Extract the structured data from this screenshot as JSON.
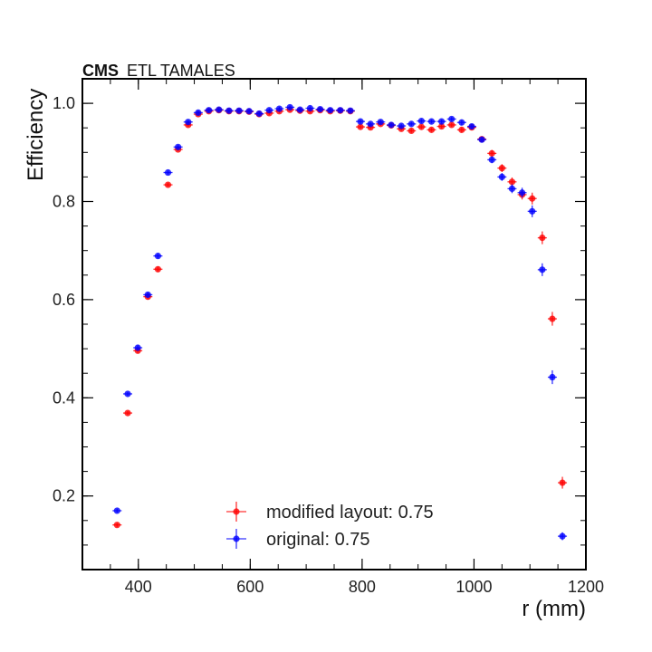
{
  "chart_data": {
    "type": "scatter",
    "label": {
      "experiment": "CMS",
      "subtitle": "ETL TAMALES"
    },
    "title": "",
    "xlabel": "r (mm)",
    "ylabel": "Efficiency",
    "xlim": [
      300,
      1200
    ],
    "ylim": [
      0.05,
      1.05
    ],
    "xticks": [
      400,
      600,
      800,
      1000,
      1200
    ],
    "yticks": [
      0.2,
      0.4,
      0.6,
      0.8,
      1.0
    ],
    "ytick_labels": [
      "0.2",
      "0.4",
      "0.6",
      "0.8",
      "1.0"
    ],
    "grid": false,
    "legend_position": "lower-center",
    "series": [
      {
        "name": "modified layout: 0.75",
        "color": "#ff0000",
        "x": [
          362,
          381,
          399,
          417,
          435,
          453,
          471,
          489,
          507,
          526,
          544,
          562,
          580,
          598,
          616,
          634,
          652,
          671,
          689,
          707,
          725,
          743,
          761,
          779,
          797,
          815,
          833,
          852,
          870,
          888,
          906,
          924,
          942,
          960,
          978,
          996,
          1014,
          1032,
          1050,
          1068,
          1086,
          1104,
          1122,
          1140,
          1158
        ],
        "y": [
          0.141,
          0.369,
          0.496,
          0.606,
          0.662,
          0.834,
          0.906,
          0.956,
          0.978,
          0.984,
          0.986,
          0.984,
          0.984,
          0.983,
          0.978,
          0.98,
          0.984,
          0.987,
          0.985,
          0.984,
          0.986,
          0.984,
          0.985,
          0.984,
          0.952,
          0.951,
          0.958,
          0.955,
          0.948,
          0.944,
          0.952,
          0.946,
          0.953,
          0.956,
          0.946,
          0.951,
          0.927,
          0.898,
          0.868,
          0.84,
          0.814,
          0.806,
          0.726,
          0.561,
          0.227
        ],
        "yerr": [
          0.004,
          0.004,
          0.005,
          0.005,
          0.005,
          0.004,
          0.004,
          0.004,
          0.004,
          0.004,
          0.004,
          0.004,
          0.004,
          0.004,
          0.004,
          0.004,
          0.004,
          0.004,
          0.004,
          0.004,
          0.004,
          0.004,
          0.004,
          0.004,
          0.004,
          0.004,
          0.004,
          0.004,
          0.004,
          0.004,
          0.004,
          0.004,
          0.004,
          0.004,
          0.005,
          0.005,
          0.006,
          0.007,
          0.008,
          0.009,
          0.01,
          0.012,
          0.013,
          0.014,
          0.012
        ]
      },
      {
        "name": "original: 0.75",
        "color": "#0000ff",
        "x": [
          362,
          381,
          399,
          417,
          435,
          453,
          471,
          489,
          507,
          526,
          544,
          562,
          580,
          598,
          616,
          634,
          652,
          671,
          689,
          707,
          725,
          743,
          761,
          779,
          797,
          815,
          833,
          852,
          870,
          888,
          906,
          924,
          942,
          960,
          978,
          996,
          1014,
          1032,
          1050,
          1068,
          1086,
          1104,
          1122,
          1140,
          1158
        ],
        "y": [
          0.17,
          0.408,
          0.502,
          0.61,
          0.689,
          0.859,
          0.911,
          0.962,
          0.981,
          0.986,
          0.987,
          0.985,
          0.985,
          0.984,
          0.979,
          0.986,
          0.989,
          0.992,
          0.987,
          0.99,
          0.988,
          0.986,
          0.986,
          0.985,
          0.963,
          0.958,
          0.962,
          0.956,
          0.954,
          0.958,
          0.964,
          0.963,
          0.963,
          0.968,
          0.961,
          0.953,
          0.926,
          0.885,
          0.85,
          0.826,
          0.818,
          0.78,
          0.661,
          0.442,
          0.118
        ],
        "yerr": [
          0.004,
          0.004,
          0.005,
          0.005,
          0.005,
          0.004,
          0.004,
          0.004,
          0.004,
          0.004,
          0.004,
          0.004,
          0.004,
          0.004,
          0.004,
          0.004,
          0.004,
          0.004,
          0.004,
          0.004,
          0.004,
          0.004,
          0.004,
          0.004,
          0.004,
          0.004,
          0.004,
          0.004,
          0.004,
          0.004,
          0.004,
          0.004,
          0.004,
          0.004,
          0.005,
          0.005,
          0.006,
          0.007,
          0.008,
          0.009,
          0.01,
          0.012,
          0.013,
          0.014,
          0.008
        ]
      }
    ]
  }
}
